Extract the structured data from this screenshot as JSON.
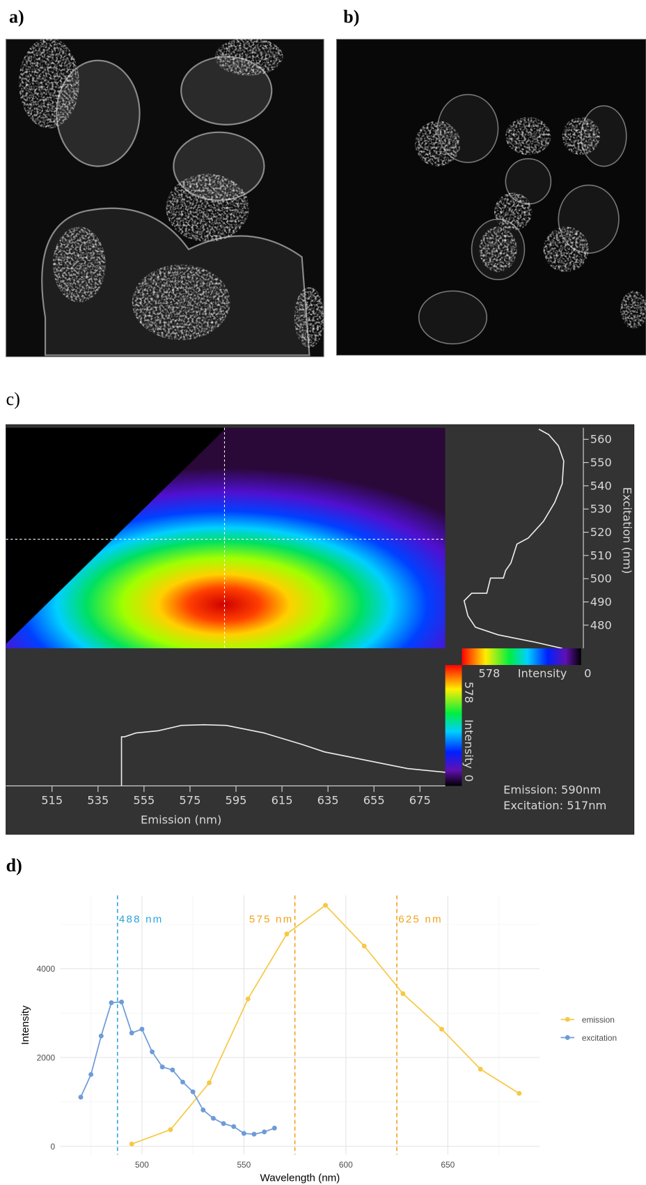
{
  "panel_labels": {
    "a": "a)",
    "b": "b)",
    "c": "c)",
    "d": "d)"
  },
  "panel_c": {
    "emission_axis": {
      "label": "Emission (nm)",
      "lim": [
        495,
        686
      ],
      "ticks": [
        515,
        535,
        555,
        575,
        595,
        615,
        635,
        655,
        675
      ]
    },
    "excitation_axis": {
      "label": "Excitation (nm)",
      "lim": [
        470,
        565
      ],
      "ticks": [
        480,
        490,
        500,
        510,
        520,
        530,
        540,
        550,
        560
      ]
    },
    "colorbar": {
      "max": 578,
      "title": "Intensity",
      "min": 0
    },
    "crosshair": {
      "emission": 590,
      "excitation": 517
    },
    "readout": [
      "Emission: 590nm",
      "Excitation: 517nm"
    ]
  },
  "chart_data": {
    "type": "line",
    "x_label": "Wavelength (nm)",
    "y_label": "Intensity",
    "xlim": [
      460,
      695
    ],
    "ylim": [
      -190,
      5650
    ],
    "xticks": [
      500,
      550,
      600,
      650
    ],
    "yticks": [
      0,
      2000,
      4000
    ],
    "minor_xticks": [
      475,
      525,
      575,
      625,
      675
    ],
    "minor_yticks": [
      1000,
      3000,
      5000
    ],
    "grid": true,
    "legend": "right",
    "series": [
      {
        "name": "emission",
        "color": "#f6c945",
        "x": [
          495,
          514,
          533,
          552,
          571,
          590,
          609,
          628,
          647,
          666,
          685
        ],
        "values": [
          51,
          374,
          1430,
          3319,
          4783,
          5430,
          4511,
          3438,
          2638,
          1736,
          1191
        ]
      },
      {
        "name": "excitation",
        "color": "#6e9bd8",
        "x": [
          470,
          475,
          480,
          485,
          490,
          495,
          500,
          505,
          510,
          515,
          520,
          525,
          530,
          535,
          540,
          545,
          550,
          555,
          560,
          565
        ],
        "values": [
          1106,
          1617,
          2485,
          3234,
          3251,
          2553,
          2638,
          2128,
          1787,
          1719,
          1447,
          1226,
          817,
          630,
          511,
          443,
          289,
          272,
          323,
          409
        ]
      }
    ],
    "vlines": [
      {
        "value": 488,
        "label": "488 nm",
        "color": "#2ea3dc"
      },
      {
        "value": 575,
        "label": "575 nm",
        "color": "#f2a21c"
      },
      {
        "value": 625,
        "label": "625 nm",
        "color": "#f2a21c"
      }
    ]
  }
}
